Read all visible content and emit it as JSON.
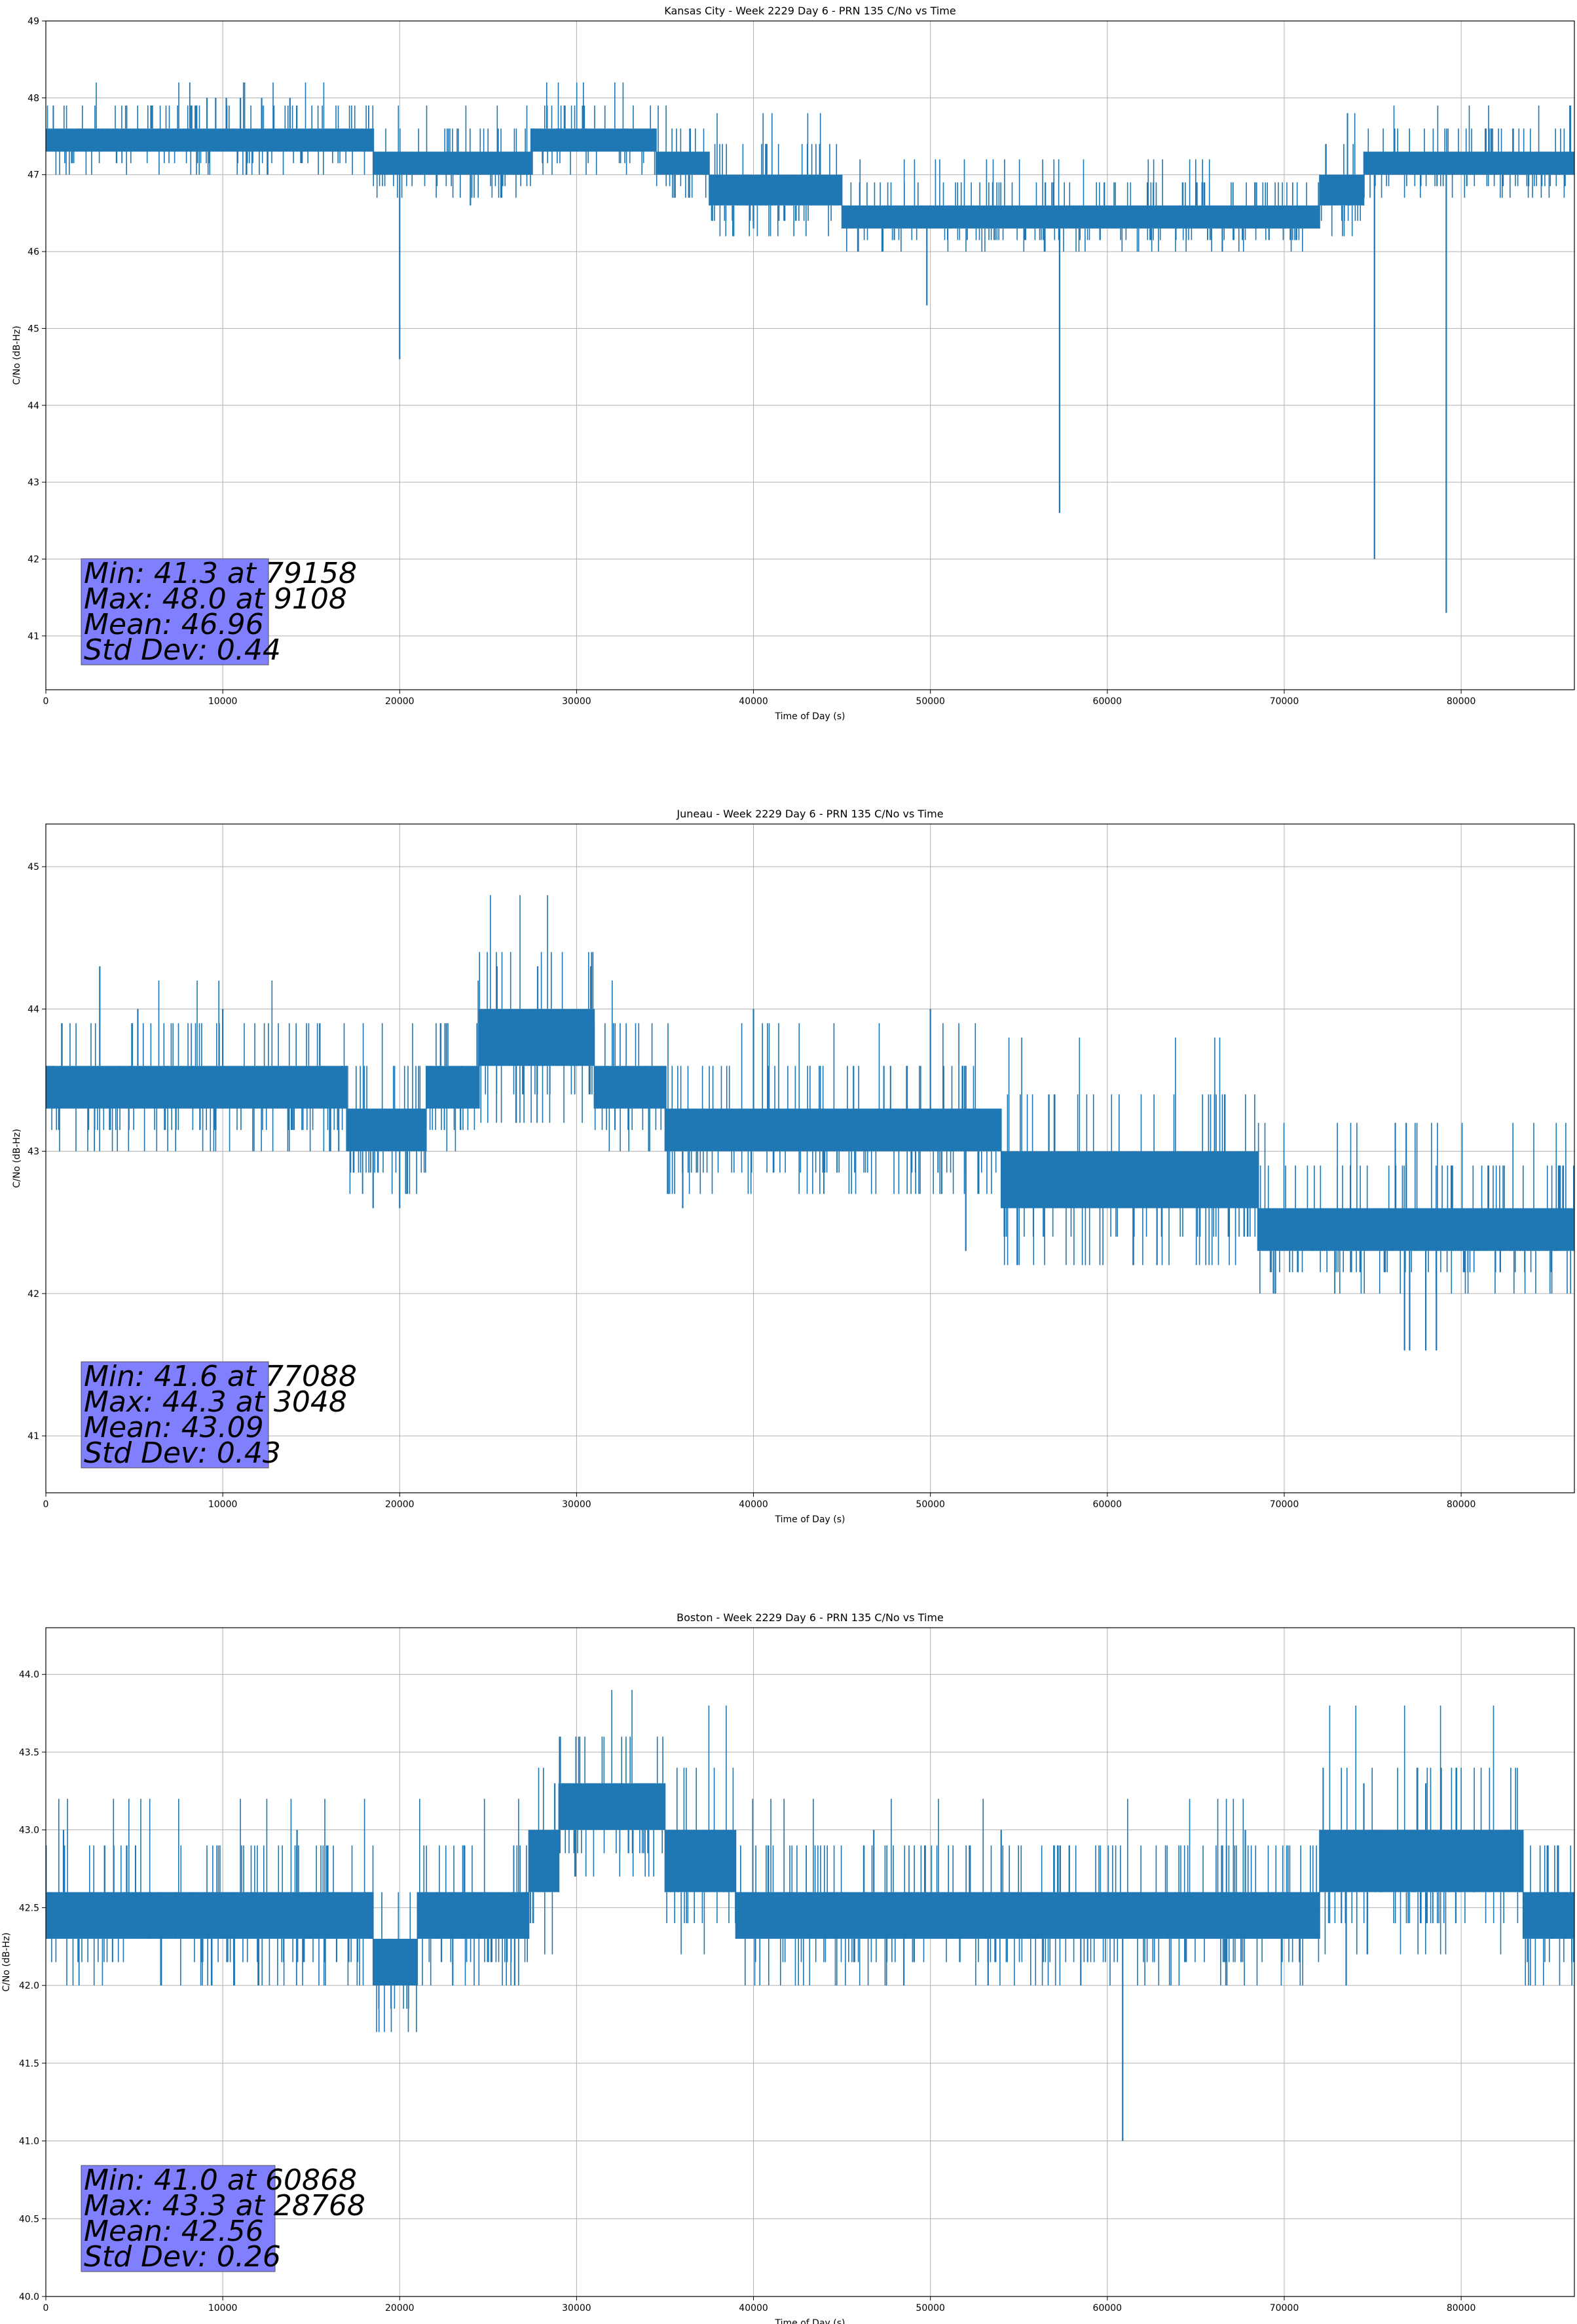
{
  "colors": {
    "series": "#1f77b4",
    "grid": "#b0b0b0",
    "stats_box": "#8080ff"
  },
  "chart_data": [
    {
      "type": "line",
      "title": "Kansas City - Week 2229 Day 6 - PRN 135 C/No vs Time",
      "xlabel": "Time of Day (s)",
      "ylabel": "C/No (dB-Hz)",
      "xlim": [
        0,
        86400
      ],
      "ylim": [
        40.3,
        49
      ],
      "xticks": [
        0,
        10000,
        20000,
        30000,
        40000,
        50000,
        60000,
        70000,
        80000
      ],
      "xtick_labels": [
        "0",
        "10000",
        "20000",
        "30000",
        "40000",
        "50000",
        "60000",
        "70000",
        "80000"
      ],
      "yticks": [
        41,
        42,
        43,
        44,
        45,
        46,
        47,
        48,
        49
      ],
      "ytick_labels": [
        "41",
        "42",
        "43",
        "44",
        "45",
        "46",
        "47",
        "48",
        "49"
      ],
      "grid": true,
      "series": [
        {
          "bands": [
            {
              "x0": 0,
              "x1": 18500,
              "lo": 47.3,
              "hi": 47.6
            },
            {
              "x0": 18500,
              "x1": 27500,
              "lo": 47.0,
              "hi": 47.3
            },
            {
              "x0": 27500,
              "x1": 34500,
              "lo": 47.3,
              "hi": 47.6
            },
            {
              "x0": 34500,
              "x1": 37500,
              "lo": 47.0,
              "hi": 47.3
            },
            {
              "x0": 37500,
              "x1": 45000,
              "lo": 46.6,
              "hi": 47.0
            },
            {
              "x0": 45000,
              "x1": 72000,
              "lo": 46.3,
              "hi": 46.6
            },
            {
              "x0": 72000,
              "x1": 74500,
              "lo": 46.6,
              "hi": 47.0
            },
            {
              "x0": 74500,
              "x1": 86400,
              "lo": 47.0,
              "hi": 47.3
            }
          ],
          "spikes": [
            {
              "x": 9108,
              "y": 48.0
            },
            {
              "x": 9600,
              "y": 48.0
            },
            {
              "x": 10200,
              "y": 48.0
            },
            {
              "x": 11000,
              "y": 48.0
            },
            {
              "x": 12200,
              "y": 48.0
            },
            {
              "x": 13800,
              "y": 48.0
            },
            {
              "x": 20000,
              "y": 44.6
            },
            {
              "x": 24000,
              "y": 46.6
            },
            {
              "x": 40000,
              "y": 46.3
            },
            {
              "x": 49800,
              "y": 45.3
            },
            {
              "x": 57300,
              "y": 42.6
            },
            {
              "x": 66500,
              "y": 46.0
            },
            {
              "x": 75100,
              "y": 42.0
            },
            {
              "x": 79158,
              "y": 41.3
            }
          ]
        }
      ],
      "stats": [
        "Min: 41.3 at 79158",
        "Max: 48.0 at 9108",
        "Mean: 46.96",
        "Std Dev: 0.44"
      ]
    },
    {
      "type": "line",
      "title": "Juneau - Week 2229 Day 6 - PRN 135 C/No vs Time",
      "xlabel": "Time of Day (s)",
      "ylabel": "C/No (dB-Hz)",
      "xlim": [
        0,
        86400
      ],
      "ylim": [
        40.6,
        45.3
      ],
      "xticks": [
        0,
        10000,
        20000,
        30000,
        40000,
        50000,
        60000,
        70000,
        80000
      ],
      "xtick_labels": [
        "0",
        "10000",
        "20000",
        "30000",
        "40000",
        "50000",
        "60000",
        "70000",
        "80000"
      ],
      "yticks": [
        41,
        42,
        43,
        44,
        45
      ],
      "ytick_labels": [
        "41",
        "42",
        "43",
        "44",
        "45"
      ],
      "grid": true,
      "series": [
        {
          "bands": [
            {
              "x0": 0,
              "x1": 17000,
              "lo": 43.3,
              "hi": 43.6
            },
            {
              "x0": 17000,
              "x1": 21500,
              "lo": 43.0,
              "hi": 43.3
            },
            {
              "x0": 21500,
              "x1": 24500,
              "lo": 43.3,
              "hi": 43.6
            },
            {
              "x0": 24500,
              "x1": 31000,
              "lo": 43.6,
              "hi": 44.0
            },
            {
              "x0": 31000,
              "x1": 35000,
              "lo": 43.3,
              "hi": 43.6
            },
            {
              "x0": 35000,
              "x1": 51000,
              "lo": 43.0,
              "hi": 43.3
            },
            {
              "x0": 51000,
              "x1": 54000,
              "lo": 43.0,
              "hi": 43.3
            },
            {
              "x0": 54000,
              "x1": 68500,
              "lo": 42.6,
              "hi": 43.0
            },
            {
              "x0": 68500,
              "x1": 83500,
              "lo": 42.3,
              "hi": 42.6
            },
            {
              "x0": 83500,
              "x1": 86400,
              "lo": 42.3,
              "hi": 42.6
            }
          ],
          "spikes": [
            {
              "x": 3048,
              "y": 44.3
            },
            {
              "x": 5200,
              "y": 44.0
            },
            {
              "x": 10000,
              "y": 44.0
            },
            {
              "x": 18500,
              "y": 42.6
            },
            {
              "x": 20000,
              "y": 42.6
            },
            {
              "x": 25500,
              "y": 44.3
            },
            {
              "x": 27800,
              "y": 44.3
            },
            {
              "x": 30800,
              "y": 44.3
            },
            {
              "x": 36000,
              "y": 42.6
            },
            {
              "x": 40000,
              "y": 44.0
            },
            {
              "x": 50000,
              "y": 44.0
            },
            {
              "x": 52000,
              "y": 42.3
            },
            {
              "x": 69500,
              "y": 42.0
            },
            {
              "x": 76800,
              "y": 41.6
            },
            {
              "x": 77088,
              "y": 41.6
            },
            {
              "x": 78000,
              "y": 41.6
            },
            {
              "x": 78600,
              "y": 41.6
            }
          ]
        }
      ],
      "stats": [
        "Min: 41.6 at 77088",
        "Max: 44.3 at 3048",
        "Mean: 43.09",
        "Std Dev: 0.43"
      ]
    },
    {
      "type": "line",
      "title": "Boston - Week 2229 Day 6 - PRN 135 C/No vs Time",
      "xlabel": "Time of Day (s)",
      "ylabel": "C/No (dB-Hz)",
      "xlim": [
        0,
        86400
      ],
      "ylim": [
        40.0,
        44.3
      ],
      "xticks": [
        0,
        10000,
        20000,
        30000,
        40000,
        50000,
        60000,
        70000,
        80000
      ],
      "xtick_labels": [
        "0",
        "10000",
        "20000",
        "30000",
        "40000",
        "50000",
        "60000",
        "70000",
        "80000"
      ],
      "yticks": [
        40.0,
        40.5,
        41.0,
        41.5,
        42.0,
        42.5,
        43.0,
        43.5,
        44.0
      ],
      "ytick_labels": [
        "40.0",
        "40.5",
        "41.0",
        "41.5",
        "42.0",
        "42.5",
        "43.0",
        "43.5",
        "44.0"
      ],
      "grid": true,
      "series": [
        {
          "bands": [
            {
              "x0": 0,
              "x1": 18500,
              "lo": 42.3,
              "hi": 42.6
            },
            {
              "x0": 18500,
              "x1": 21000,
              "lo": 42.0,
              "hi": 42.3
            },
            {
              "x0": 21000,
              "x1": 27300,
              "lo": 42.3,
              "hi": 42.6
            },
            {
              "x0": 27300,
              "x1": 29000,
              "lo": 42.6,
              "hi": 43.0
            },
            {
              "x0": 29000,
              "x1": 35000,
              "lo": 43.0,
              "hi": 43.3
            },
            {
              "x0": 35000,
              "x1": 39000,
              "lo": 42.6,
              "hi": 43.0
            },
            {
              "x0": 39000,
              "x1": 72000,
              "lo": 42.3,
              "hi": 42.6
            },
            {
              "x0": 72000,
              "x1": 83500,
              "lo": 42.6,
              "hi": 43.0
            },
            {
              "x0": 83500,
              "x1": 86400,
              "lo": 42.3,
              "hi": 42.6
            }
          ],
          "spikes": [
            {
              "x": 1000,
              "y": 43.0
            },
            {
              "x": 6500,
              "y": 42.0
            },
            {
              "x": 14200,
              "y": 43.0
            },
            {
              "x": 23000,
              "y": 42.0
            },
            {
              "x": 26500,
              "y": 42.0
            },
            {
              "x": 28768,
              "y": 43.3
            },
            {
              "x": 31500,
              "y": 43.3
            },
            {
              "x": 46800,
              "y": 43.0
            },
            {
              "x": 48500,
              "y": 42.0
            },
            {
              "x": 54000,
              "y": 43.0
            },
            {
              "x": 58500,
              "y": 42.0
            },
            {
              "x": 60868,
              "y": 41.0
            },
            {
              "x": 67800,
              "y": 43.0
            },
            {
              "x": 73500,
              "y": 42.0
            },
            {
              "x": 74500,
              "y": 43.3
            },
            {
              "x": 78000,
              "y": 43.3
            }
          ]
        }
      ],
      "stats": [
        "Min: 41.0 at 60868",
        "Max: 43.3 at 28768",
        "Mean: 42.56",
        "Std Dev: 0.26"
      ]
    }
  ]
}
